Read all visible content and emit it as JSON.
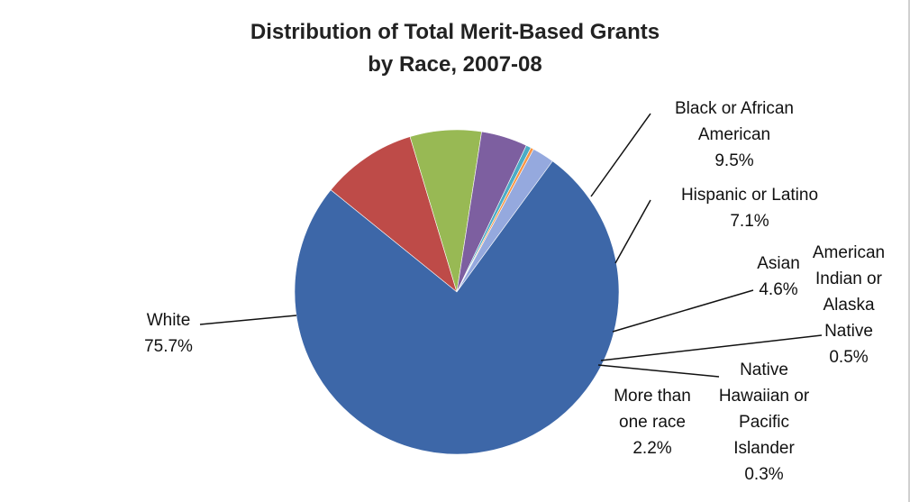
{
  "chart_data": {
    "type": "pie",
    "title": [
      "Distribution of Total Merit-Based Grants",
      "by Race, 2007-08"
    ],
    "slices": [
      {
        "label": [
          "Black or African",
          "American"
        ],
        "value": 9.5,
        "value_label": "9.5%",
        "color": "#be4b48"
      },
      {
        "label": [
          "Hispanic or Latino"
        ],
        "value": 7.1,
        "value_label": "7.1%",
        "color": "#98b954"
      },
      {
        "label": [
          "Asian"
        ],
        "value": 4.6,
        "value_label": "4.6%",
        "color": "#7d5fa0"
      },
      {
        "label": [
          "American",
          "Indian or",
          "Alaska",
          "Native"
        ],
        "value": 0.5,
        "value_label": "0.5%",
        "color": "#4bacc6"
      },
      {
        "label": [
          "Native",
          "Hawaiian or",
          "Pacific",
          "Islander"
        ],
        "value": 0.3,
        "value_label": "0.3%",
        "color": "#f79646"
      },
      {
        "label": [
          "More than",
          "one race"
        ],
        "value": 2.2,
        "value_label": "2.2%",
        "color": "#95a9de"
      },
      {
        "label": [
          "White"
        ],
        "value": 75.7,
        "value_label": "75.7%",
        "color": "#3d67a8"
      }
    ]
  }
}
